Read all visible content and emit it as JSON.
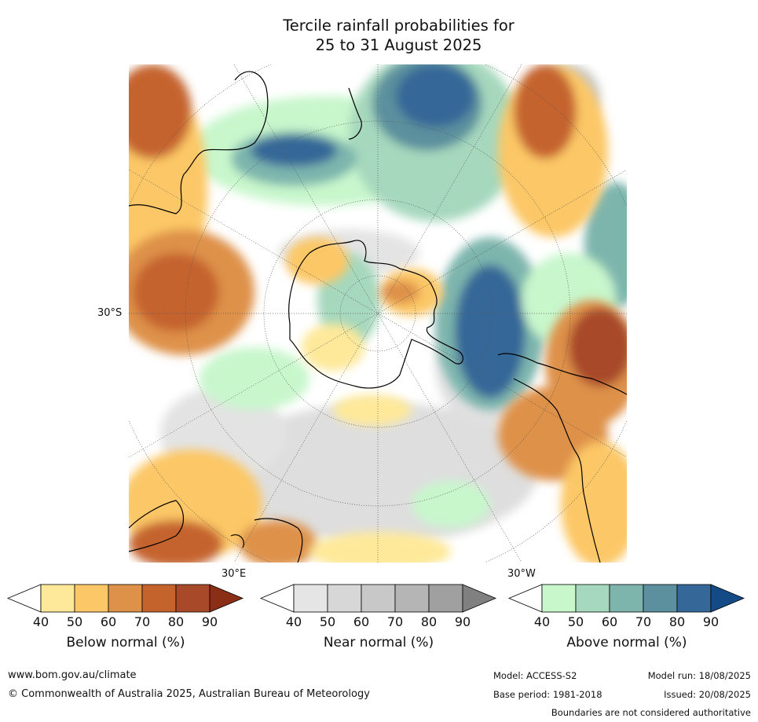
{
  "title_line1": "Tercile rainfall probabilities for",
  "title_line2": "25 to 31 August 2025",
  "latitude_label": "30°S",
  "longitude_labels": {
    "east": "30°E",
    "west": "30°W"
  },
  "colorbars": [
    {
      "id": "below",
      "title": "Below normal (%)",
      "ticks": [
        "40",
        "50",
        "60",
        "70",
        "80",
        "90"
      ],
      "colors": [
        "#ffffff",
        "#fee99a",
        "#fcc766",
        "#de9148",
        "#c5632d",
        "#a8492a",
        "#8b2e16"
      ]
    },
    {
      "id": "near",
      "title": "Near normal (%)",
      "ticks": [
        "40",
        "50",
        "60",
        "70",
        "80",
        "90"
      ],
      "colors": [
        "#ffffff",
        "#e5e5e5",
        "#d7d7d7",
        "#c8c8c8",
        "#b5b5b5",
        "#a0a0a0",
        "#808080"
      ]
    },
    {
      "id": "above",
      "title": "Above normal (%)",
      "ticks": [
        "40",
        "50",
        "60",
        "70",
        "80",
        "90"
      ],
      "colors": [
        "#ffffff",
        "#c8f7cc",
        "#a6d8bd",
        "#7db5ad",
        "#5c909e",
        "#356898",
        "#144b86"
      ]
    }
  ],
  "footer": {
    "website": "www.bom.gov.au/climate",
    "copyright": "© Commonwealth of Australia 2025, Australian Bureau of Meteorology",
    "model": "Model: ACCESS-S2",
    "base_period": "Base period: 1981-2018",
    "model_run": "Model run: 18/08/2025",
    "issued": "Issued: 20/08/2025",
    "disclaimer": "Boundaries are not considered authoritative"
  }
}
